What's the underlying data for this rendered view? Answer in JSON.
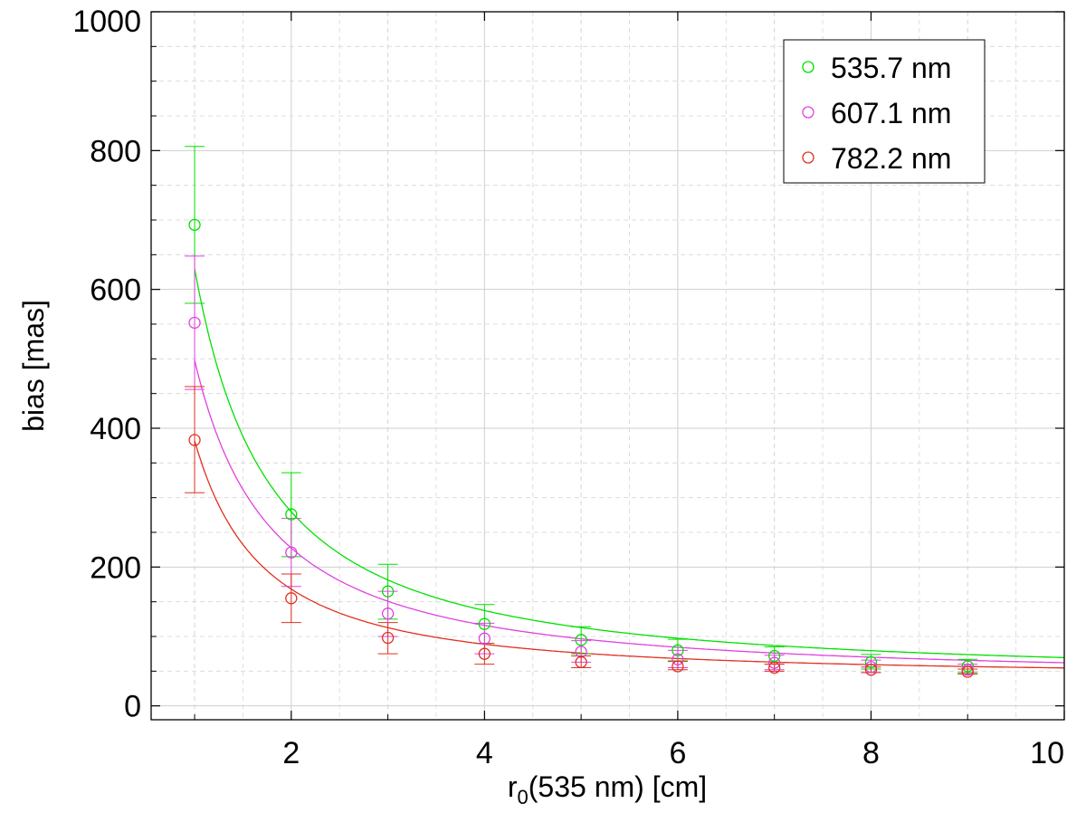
{
  "chart_data": {
    "type": "scatter",
    "xlabel_main": "r",
    "xlabel_sub": "0",
    "xlabel_rest": "(535 nm) [cm]",
    "ylabel": "bias [mas]",
    "xlim": [
      0.55,
      10
    ],
    "ylim": [
      -20,
      1000
    ],
    "x_ticks": [
      2,
      4,
      6,
      8,
      10
    ],
    "y_ticks": [
      0,
      200,
      400,
      600,
      800,
      1000
    ],
    "x_minor": [
      1,
      3,
      5,
      7,
      9
    ],
    "y_minor": [
      100,
      300,
      500,
      700,
      900
    ],
    "grid": true,
    "legend_position": "top-right",
    "x": [
      1,
      2,
      3,
      4,
      5,
      6,
      7,
      8,
      9
    ],
    "series": [
      {
        "name": "535.7 nm",
        "color": "#00e000",
        "values": [
          693,
          276,
          165,
          118,
          95,
          80,
          72,
          63,
          57
        ],
        "err_low": [
          580,
          215,
          125,
          90,
          75,
          65,
          60,
          53,
          48
        ],
        "err_high": [
          806,
          336,
          204,
          146,
          114,
          96,
          85,
          74,
          67
        ],
        "fit": {
          "a": 590,
          "b": 1.3,
          "c": 40
        }
      },
      {
        "name": "607.1 nm",
        "color": "#e040e0",
        "values": [
          552,
          221,
          133,
          97,
          78,
          67,
          62,
          56,
          52
        ],
        "err_low": [
          456,
          172,
          100,
          75,
          63,
          55,
          52,
          48,
          46
        ],
        "err_high": [
          648,
          270,
          165,
          119,
          94,
          80,
          73,
          66,
          60
        ],
        "fit": {
          "a": 460,
          "b": 1.28,
          "c": 38
        }
      },
      {
        "name": "782.2 nm",
        "color": "#e03020",
        "values": [
          383,
          155,
          98,
          75,
          63,
          57,
          55,
          52,
          49
        ],
        "err_low": [
          307,
          120,
          75,
          60,
          55,
          52,
          50,
          48,
          46
        ],
        "err_high": [
          460,
          190,
          120,
          90,
          72,
          64,
          60,
          56,
          53
        ],
        "fit": {
          "a": 340,
          "b": 1.43,
          "c": 42
        }
      }
    ]
  }
}
